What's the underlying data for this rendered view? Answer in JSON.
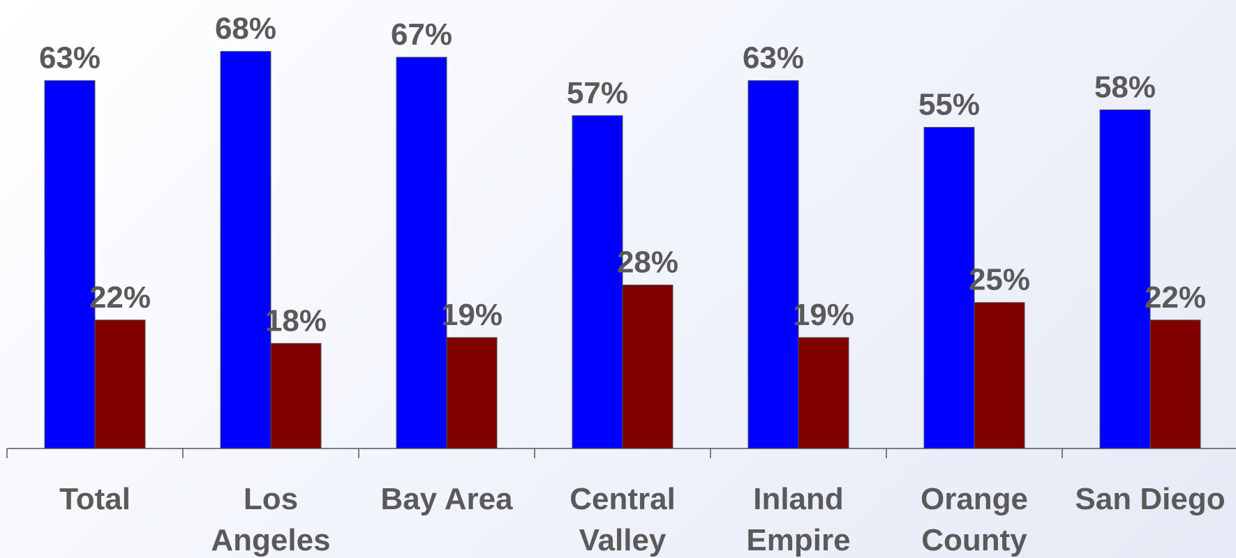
{
  "chart_data": {
    "type": "bar",
    "categories": [
      [
        "Total"
      ],
      [
        "Los",
        "Angeles"
      ],
      [
        "Bay Area"
      ],
      [
        "Central",
        "Valley"
      ],
      [
        "Inland",
        "Empire"
      ],
      [
        "Orange",
        "County"
      ],
      [
        "San Diego"
      ]
    ],
    "series": [
      {
        "values": [
          63,
          68,
          67,
          57,
          63,
          55,
          58
        ],
        "labels": [
          "63%",
          "68%",
          "67%",
          "57%",
          "63%",
          "55%",
          "58%"
        ],
        "color": "#0000ff"
      },
      {
        "values": [
          22,
          18,
          19,
          28,
          19,
          25,
          22
        ],
        "labels": [
          "22%",
          "18%",
          "19%",
          "28%",
          "19%",
          "25%",
          "22%"
        ],
        "color": "#800000"
      }
    ],
    "ylim": [
      0,
      76.8
    ],
    "grid": false,
    "legend": "none"
  }
}
